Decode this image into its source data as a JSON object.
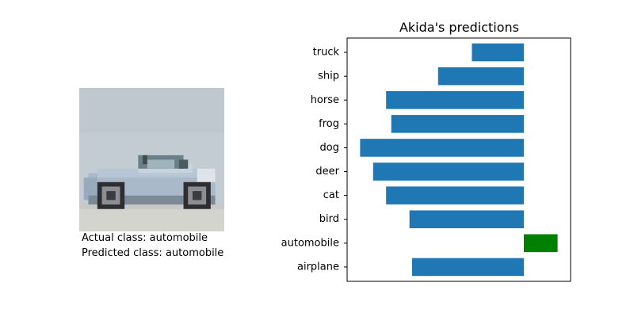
{
  "sample": {
    "image_label": "automobile thumbnail",
    "actual_text": "Actual class: automobile",
    "predicted_text": "Predicted class: automobile"
  },
  "chart_data": {
    "type": "bar",
    "orientation": "horizontal",
    "title": "Akida's predictions",
    "xlabel": "",
    "ylabel": "",
    "categories": [
      "airplane",
      "automobile",
      "bird",
      "cat",
      "deer",
      "dog",
      "frog",
      "horse",
      "ship",
      "truck"
    ],
    "values": [
      -4.3,
      1.3,
      -4.4,
      -5.3,
      -5.8,
      -6.3,
      -5.1,
      -5.3,
      -3.3,
      -2.0
    ],
    "predicted": "automobile",
    "xlim": [
      -6.8,
      1.8
    ],
    "grid": false,
    "colors": {
      "bar": "#1f77b4",
      "predicted_bar": "#008000",
      "axis": "#000000"
    }
  }
}
